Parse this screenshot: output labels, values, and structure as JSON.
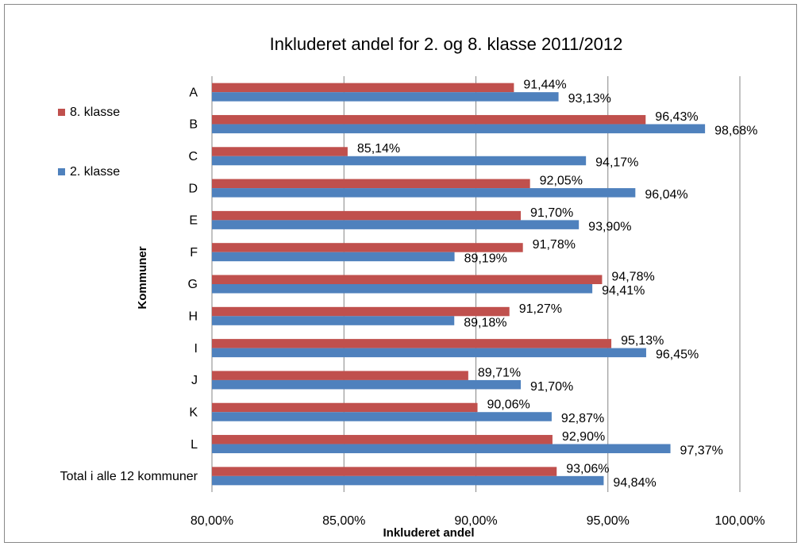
{
  "chart_data": {
    "type": "hbar",
    "title": "Inkluderet andel for 2. og 8. klasse 2011/2012",
    "x_label": "Inkluderet andel",
    "y_label": "Kommuner",
    "categories": [
      "A",
      "B",
      "C",
      "D",
      "E",
      "F",
      "G",
      "H",
      "I",
      "J",
      "K",
      "L",
      "Total i alle 12 kommuner"
    ],
    "series": [
      {
        "name": "8. klasse",
        "color": "#c0504d",
        "values": [
          91.44,
          96.43,
          85.14,
          92.05,
          91.7,
          91.78,
          94.78,
          91.27,
          95.13,
          89.71,
          90.06,
          92.9,
          93.06
        ],
        "value_labels": [
          "91,44%",
          "96,43%",
          "85,14%",
          "92,05%",
          "91,70%",
          "91,78%",
          "94,78%",
          "91,27%",
          "95,13%",
          "89,71%",
          "90,06%",
          "92,90%",
          "93,06%"
        ]
      },
      {
        "name": "2. klasse",
        "color": "#4f81bd",
        "values": [
          93.13,
          98.68,
          94.17,
          96.04,
          93.9,
          89.19,
          94.41,
          89.18,
          96.45,
          91.7,
          92.87,
          97.37,
          94.84
        ],
        "value_labels": [
          "93,13%",
          "98,68%",
          "94,17%",
          "96,04%",
          "93,90%",
          "89,19%",
          "94,41%",
          "89,18%",
          "96,45%",
          "91,70%",
          "92,87%",
          "97,37%",
          "94,84%"
        ]
      }
    ],
    "xlim": [
      80,
      100
    ],
    "xticks": [
      {
        "value": 80,
        "label": "80,00%"
      },
      {
        "value": 85,
        "label": "85,00%"
      },
      {
        "value": 90,
        "label": "90,00%"
      },
      {
        "value": 95,
        "label": "95,00%"
      },
      {
        "value": 100,
        "label": "100,00%"
      }
    ],
    "grid": true,
    "legend": "left"
  }
}
